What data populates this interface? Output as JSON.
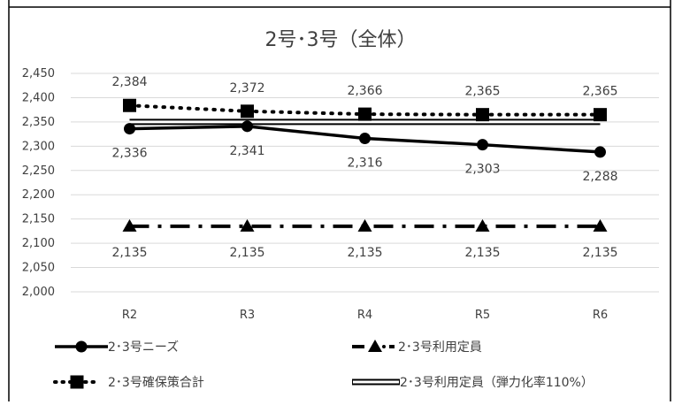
{
  "chart_data": {
    "type": "line",
    "title": "2号･3号（全体）",
    "xlabel": "",
    "ylabel": "",
    "categories": [
      "R2",
      "R3",
      "R4",
      "R5",
      "R6"
    ],
    "ylim": [
      2000,
      2450
    ],
    "yticks": [
      "2,000",
      "2,050",
      "2,100",
      "2,150",
      "2,200",
      "2,250",
      "2,300",
      "2,350",
      "2,400",
      "2,450"
    ],
    "grid": true,
    "legend_position": "bottom",
    "series": [
      {
        "name": "2･3号ニーズ",
        "values": [
          2336,
          2341,
          2316,
          2303,
          2288
        ],
        "labels": [
          "2,336",
          "2,341",
          "2,316",
          "2,303",
          "2,288"
        ],
        "style": "solid-circle",
        "color": "#000000"
      },
      {
        "name": "2･3号利用定員",
        "values": [
          2135,
          2135,
          2135,
          2135,
          2135
        ],
        "labels": [
          "2,135",
          "2,135",
          "2,135",
          "2,135",
          "2,135"
        ],
        "style": "dashdot-triangle",
        "color": "#000000"
      },
      {
        "name": "2･3号確保策合計",
        "values": [
          2384,
          2372,
          2366,
          2365,
          2365
        ],
        "labels": [
          "2,384",
          "2,372",
          "2,366",
          "2,365",
          "2,365"
        ],
        "style": "dotted-square",
        "color": "#000000"
      },
      {
        "name": "2･3号利用定員（弾力化率110%）",
        "values": [
          2350,
          2350,
          2350,
          2350,
          2350
        ],
        "labels": [],
        "style": "double-line",
        "color": "#000000"
      }
    ]
  }
}
